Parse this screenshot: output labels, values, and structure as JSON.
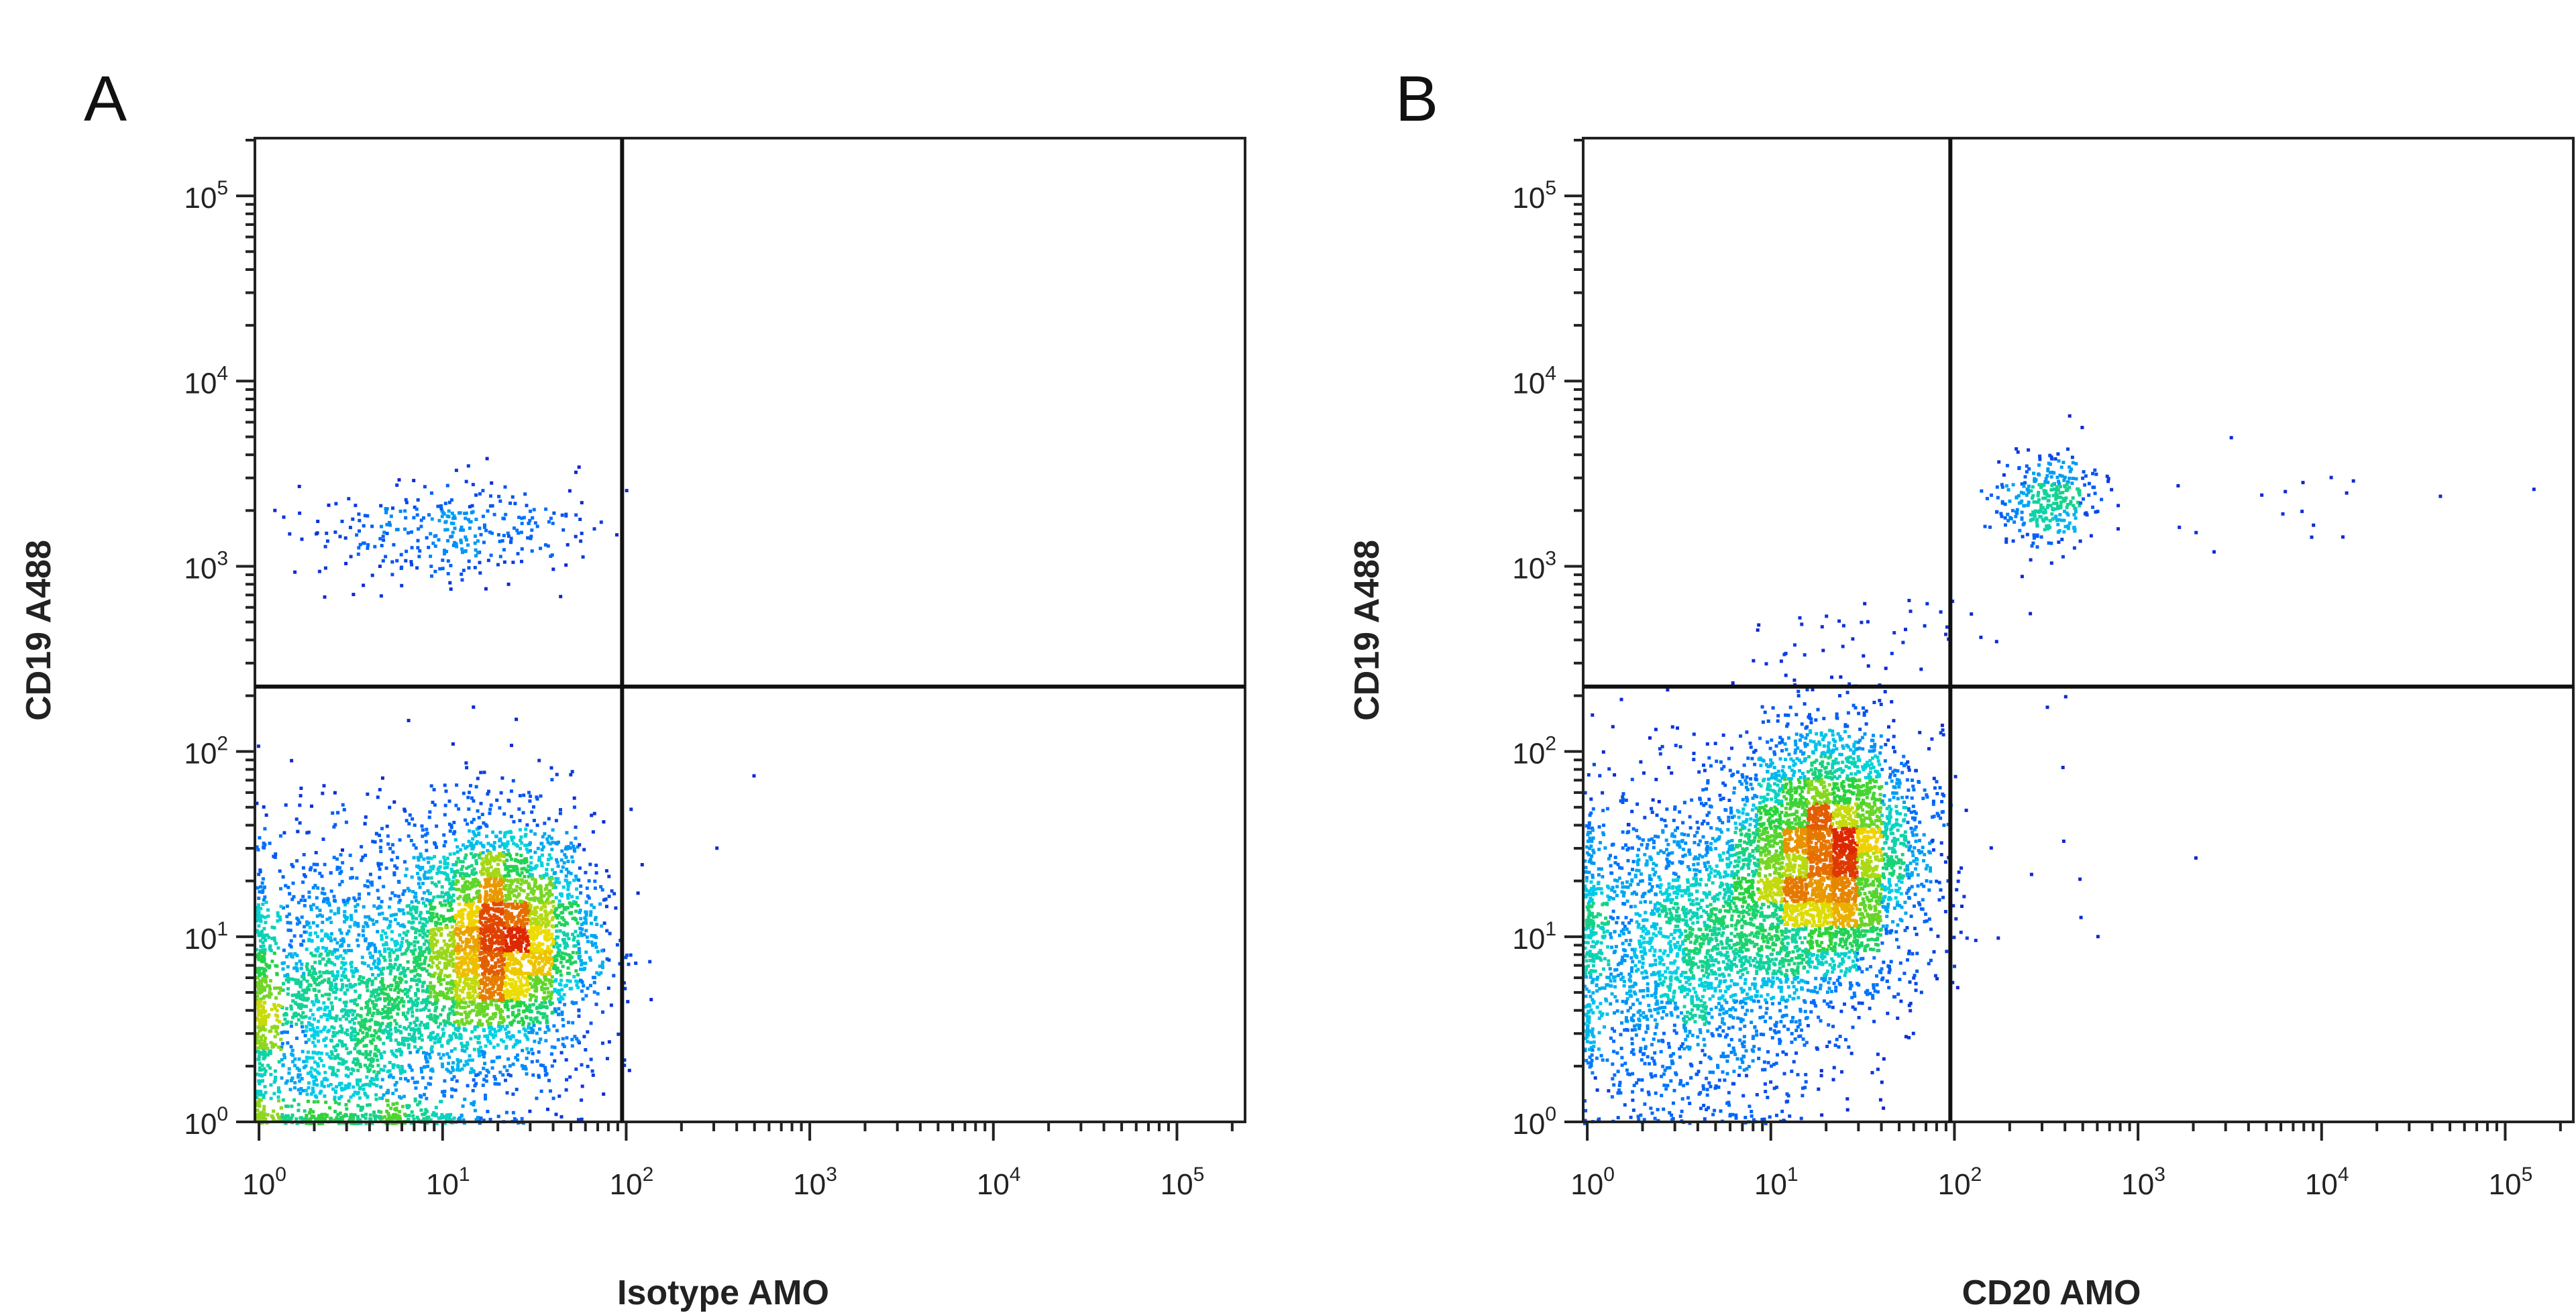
{
  "chart_data": [
    {
      "type": "scatter",
      "subtype": "flow-cytometry-density-dot-plot",
      "panel_label": "A",
      "xlabel": "Isotype AMO",
      "ylabel": "CD19 A488",
      "x_scale": "log",
      "y_scale": "log",
      "xlim": [
        0.95,
        235000
      ],
      "ylim": [
        1,
        205000
      ],
      "x_ticks": [
        {
          "base": "10",
          "exp": "0"
        },
        {
          "base": "10",
          "exp": "1"
        },
        {
          "base": "10",
          "exp": "2"
        },
        {
          "base": "10",
          "exp": "3"
        },
        {
          "base": "10",
          "exp": "4"
        },
        {
          "base": "10",
          "exp": "5"
        }
      ],
      "y_ticks": [
        {
          "base": "10",
          "exp": "0"
        },
        {
          "base": "10",
          "exp": "1"
        },
        {
          "base": "10",
          "exp": "2"
        },
        {
          "base": "10",
          "exp": "3"
        },
        {
          "base": "10",
          "exp": "4"
        },
        {
          "base": "10",
          "exp": "5"
        }
      ],
      "quadrant_gate": {
        "x": 95,
        "y": 224
      },
      "color_scale": "density (blue-cyan-green-yellow-red)",
      "populations": [
        {
          "center": [
            20,
            10
          ],
          "log_sd": [
            0.25,
            0.33
          ],
          "events": 3200
        },
        {
          "center": [
            3,
            4
          ],
          "log_sd": [
            0.4,
            0.45
          ],
          "events": 2600
        },
        {
          "center": [
            10,
            1600
          ],
          "log_sd": [
            0.38,
            0.14
          ],
          "events": 320
        },
        {
          "center": [
            200,
            60
          ],
          "log_sd": [
            0.35,
            0.3
          ],
          "events": 5
        }
      ]
    },
    {
      "type": "scatter",
      "subtype": "flow-cytometry-density-dot-plot",
      "panel_label": "B",
      "xlabel": "CD20 AMO",
      "ylabel": "CD19 A488",
      "x_scale": "log",
      "y_scale": "log",
      "xlim": [
        0.95,
        235000
      ],
      "ylim": [
        1,
        205000
      ],
      "x_ticks": [
        {
          "base": "10",
          "exp": "0"
        },
        {
          "base": "10",
          "exp": "1"
        },
        {
          "base": "10",
          "exp": "2"
        },
        {
          "base": "10",
          "exp": "3"
        },
        {
          "base": "10",
          "exp": "4"
        },
        {
          "base": "10",
          "exp": "5"
        }
      ],
      "y_ticks": [
        {
          "base": "10",
          "exp": "0"
        },
        {
          "base": "10",
          "exp": "1"
        },
        {
          "base": "10",
          "exp": "2"
        },
        {
          "base": "10",
          "exp": "3"
        },
        {
          "base": "10",
          "exp": "4"
        },
        {
          "base": "10",
          "exp": "5"
        }
      ],
      "quadrant_gate": {
        "x": 95,
        "y": 224
      },
      "color_scale": "density (blue-cyan-green-yellow-red)",
      "populations": [
        {
          "center": [
            20,
            28
          ],
          "log_sd": [
            0.25,
            0.33
          ],
          "events": 3600
        },
        {
          "center": [
            4,
            9
          ],
          "log_sd": [
            0.42,
            0.42
          ],
          "events": 2600
        },
        {
          "center": [
            320,
            2300
          ],
          "log_sd": [
            0.13,
            0.12
          ],
          "events": 330
        },
        {
          "center": [
            30,
            400
          ],
          "log_sd": [
            0.4,
            0.12
          ],
          "events": 40
        },
        {
          "center": [
            5000,
            2500
          ],
          "log_sd": [
            0.7,
            0.2
          ],
          "events": 18
        },
        {
          "center": [
            300,
            40
          ],
          "log_sd": [
            0.35,
            0.4
          ],
          "events": 10
        }
      ]
    }
  ]
}
